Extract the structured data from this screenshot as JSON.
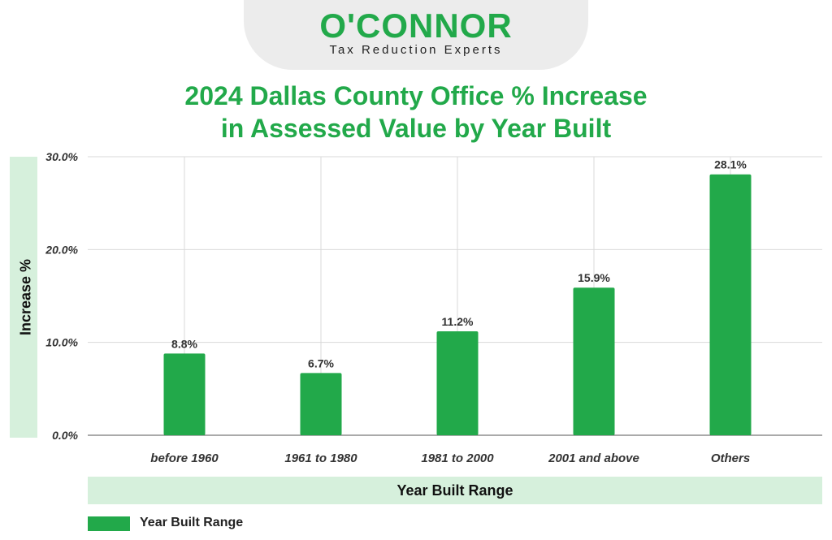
{
  "logo": {
    "name": "O'CONNOR",
    "tagline": "Tax Reduction Experts"
  },
  "colors": {
    "bar": "#22a94a",
    "title": "#22a94a",
    "band": "#d6f0dc",
    "grid": "#d9d9d9"
  },
  "chart_data": {
    "type": "bar",
    "title_line1": "2024 Dallas County Office % Increase",
    "title_line2": "in Assessed Value by Year Built",
    "xlabel": "Year Built Range",
    "ylabel": "Increase %",
    "categories": [
      "before 1960",
      "1961 to 1980",
      "1981 to 2000",
      "2001 and above",
      "Others"
    ],
    "series": [
      {
        "name": "Year Built Range",
        "values": [
          8.8,
          6.7,
          11.2,
          15.9,
          28.1
        ]
      }
    ],
    "value_labels": [
      "8.8%",
      "6.7%",
      "11.2%",
      "15.9%",
      "28.1%"
    ],
    "ylim": [
      0,
      30
    ],
    "yticks": [
      0,
      10,
      20,
      30
    ],
    "ytick_labels": [
      "0.0%",
      "10.0%",
      "20.0%",
      "30.0%"
    ],
    "grid": true,
    "legend": "bottom-left"
  }
}
